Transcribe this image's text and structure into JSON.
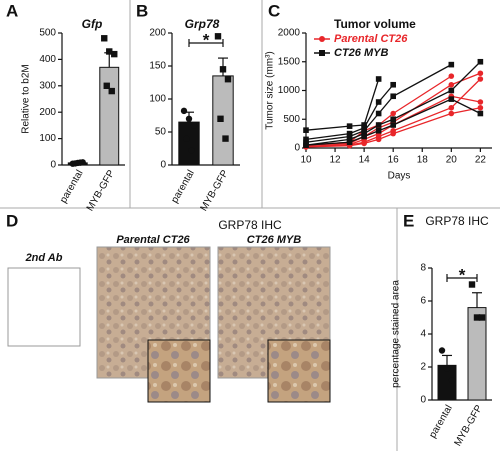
{
  "chart_data": [
    {
      "type": "bar",
      "panel": "A",
      "title": "Gfp",
      "ylabel": "Relative to b2M",
      "categories": [
        "parental",
        "MYB-GFP"
      ],
      "values": [
        8,
        370
      ],
      "errors": [
        3,
        55
      ],
      "colors": [
        "#111111",
        "#bbbbbb"
      ],
      "markers": [
        "circle",
        "square"
      ],
      "points": [
        [
          5,
          8,
          10,
          6,
          9
        ],
        [
          480,
          430,
          420,
          300,
          280
        ]
      ],
      "ylim": [
        0,
        500
      ],
      "yticks": [
        0,
        100,
        200,
        300,
        400,
        500
      ]
    },
    {
      "type": "bar",
      "panel": "B",
      "title": "Grp78",
      "annotation": "*",
      "categories": [
        "parental",
        "MYB-GFP"
      ],
      "values": [
        65,
        135
      ],
      "errors": [
        15,
        27
      ],
      "colors": [
        "#111111",
        "#bbbbbb"
      ],
      "markers": [
        "circle",
        "square"
      ],
      "points": [
        [
          82,
          70,
          60,
          40,
          22
        ],
        [
          195,
          145,
          130,
          70,
          40
        ]
      ],
      "ylim": [
        0,
        200
      ],
      "yticks": [
        0,
        50,
        100,
        150,
        200
      ]
    },
    {
      "type": "line",
      "panel": "C",
      "legend_title": "Tumor volume",
      "xlabel": "Days",
      "ylabel": "Tumor size (mm³)",
      "x": [
        10,
        13,
        14,
        15,
        16,
        20,
        22
      ],
      "series": [
        {
          "name": "Parental CT26",
          "color": "#e8262a",
          "marker": "circle",
          "lines": [
            [
              50,
              100,
              300,
              400,
              600,
              1250,
              null
            ],
            [
              50,
              80,
              200,
              350,
              450,
              1100,
              1300
            ],
            [
              30,
              60,
              150,
              250,
              400,
              900,
              800
            ],
            [
              20,
              50,
              100,
              200,
              300,
              700,
              1200
            ],
            [
              20,
              40,
              80,
              150,
              250,
              600,
              700
            ]
          ]
        },
        {
          "name": "CT26 MYB",
          "color": "#111111",
          "marker": "square",
          "lines": [
            [
              310,
              380,
              400,
              1200,
              null,
              null,
              null
            ],
            [
              150,
              250,
              350,
              800,
              1100,
              null,
              null
            ],
            [
              100,
              200,
              300,
              600,
              900,
              1450,
              null
            ],
            [
              50,
              150,
              250,
              400,
              500,
              1000,
              1500
            ],
            [
              50,
              100,
              200,
              300,
              400,
              850,
              600
            ]
          ]
        }
      ],
      "xlim": [
        10,
        22.8
      ],
      "xticks": [
        10,
        12,
        14,
        16,
        18,
        20,
        22
      ],
      "ylim": [
        0,
        2000
      ],
      "yticks": [
        0,
        500,
        1000,
        1500,
        2000
      ]
    },
    {
      "type": "bar",
      "panel": "E",
      "title": "GRP78 IHC",
      "ylabel": "percentage stained area",
      "annotation": "*",
      "categories": [
        "parental",
        "MYB-GFP"
      ],
      "values": [
        2.1,
        5.6
      ],
      "errors": [
        0.6,
        0.9
      ],
      "colors": [
        "#111111",
        "#bbbbbb"
      ],
      "markers": [
        "circle",
        "square"
      ],
      "points": [
        [
          3.0,
          1.9,
          1.2
        ],
        [
          7.0,
          5.0,
          5.0
        ]
      ],
      "ylim": [
        0,
        8
      ],
      "yticks": [
        0,
        2,
        4,
        6,
        8
      ]
    }
  ],
  "panel_d": {
    "panel": "D",
    "title": "GRP78 IHC",
    "control": "2nd Ab",
    "left": "Parental CT26",
    "right": "CT26 MYB"
  }
}
